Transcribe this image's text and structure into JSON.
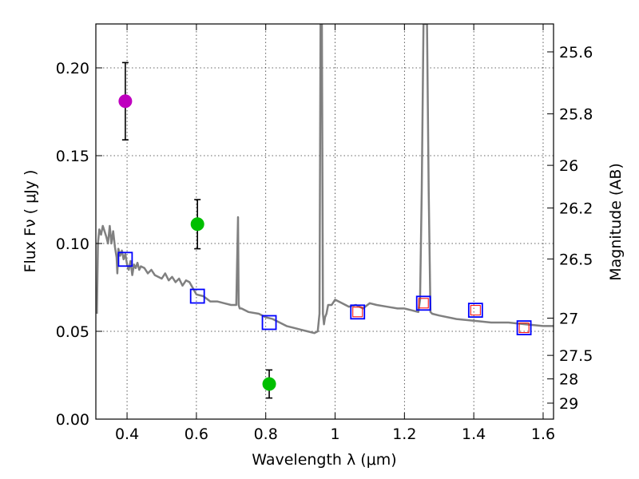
{
  "chart_data": {
    "type": "scatter",
    "xlabel": "Wavelength  λ (μm)",
    "ylabel": "Flux  Fν  ( μJy )",
    "ylabel_right": "Magnitude (AB)",
    "xlim": [
      0.31,
      1.63
    ],
    "ylim": [
      0.0,
      0.225
    ],
    "grid": true,
    "x_ticks": [
      0.4,
      0.6,
      0.8,
      1.0,
      1.2,
      1.4,
      1.6
    ],
    "x_tick_labels": [
      "0.4",
      "0.6",
      "0.8",
      "1",
      "1.2",
      "1.4",
      "1.6"
    ],
    "y_ticks": [
      0.0,
      0.05,
      0.1,
      0.15,
      0.2
    ],
    "y_tick_labels": [
      "0.00",
      "0.05",
      "0.10",
      "0.15",
      "0.20"
    ],
    "right_ticks": [
      {
        "label": "25.6",
        "flux": 0.2091
      },
      {
        "label": "25.8",
        "flux": 0.1738
      },
      {
        "label": "26",
        "flux": 0.1445
      },
      {
        "label": "26.2",
        "flux": 0.1202
      },
      {
        "label": "26.5",
        "flux": 0.0912
      },
      {
        "label": "27",
        "flux": 0.0575
      },
      {
        "label": "27.5",
        "flux": 0.0363
      },
      {
        "label": "28",
        "flux": 0.0229
      },
      {
        "label": "29",
        "flux": 0.0091
      }
    ],
    "series": [
      {
        "name": "model_sed",
        "kind": "line",
        "color": "#808080",
        "x": [
          0.313,
          0.316,
          0.32,
          0.325,
          0.33,
          0.335,
          0.34,
          0.345,
          0.35,
          0.355,
          0.36,
          0.365,
          0.37,
          0.372,
          0.375,
          0.38,
          0.385,
          0.39,
          0.395,
          0.4,
          0.405,
          0.41,
          0.415,
          0.42,
          0.425,
          0.43,
          0.435,
          0.44,
          0.45,
          0.46,
          0.47,
          0.48,
          0.49,
          0.5,
          0.51,
          0.52,
          0.53,
          0.54,
          0.55,
          0.56,
          0.57,
          0.58,
          0.6,
          0.62,
          0.64,
          0.66,
          0.68,
          0.7,
          0.715,
          0.72,
          0.722,
          0.725,
          0.73,
          0.75,
          0.78,
          0.8,
          0.82,
          0.84,
          0.86,
          0.88,
          0.9,
          0.92,
          0.94,
          0.95,
          0.955,
          0.958,
          0.96,
          0.962,
          0.965,
          0.968,
          0.971,
          0.975,
          0.98,
          0.99,
          1.0,
          1.02,
          1.04,
          1.06,
          1.08,
          1.1,
          1.12,
          1.15,
          1.18,
          1.2,
          1.22,
          1.24,
          1.245,
          1.25,
          1.255,
          1.26,
          1.265,
          1.27,
          1.275,
          1.28,
          1.3,
          1.35,
          1.4,
          1.45,
          1.5,
          1.55,
          1.6,
          1.63
        ],
        "y": [
          0.06,
          0.1,
          0.108,
          0.105,
          0.11,
          0.107,
          0.104,
          0.1,
          0.11,
          0.1,
          0.107,
          0.098,
          0.092,
          0.083,
          0.097,
          0.093,
          0.096,
          0.091,
          0.094,
          0.088,
          0.085,
          0.09,
          0.082,
          0.088,
          0.086,
          0.089,
          0.085,
          0.087,
          0.086,
          0.083,
          0.085,
          0.082,
          0.081,
          0.08,
          0.083,
          0.079,
          0.081,
          0.078,
          0.08,
          0.076,
          0.079,
          0.078,
          0.071,
          0.07,
          0.067,
          0.067,
          0.066,
          0.065,
          0.065,
          0.115,
          0.065,
          0.063,
          0.063,
          0.061,
          0.06,
          0.058,
          0.057,
          0.055,
          0.053,
          0.052,
          0.051,
          0.05,
          0.049,
          0.05,
          0.06,
          0.225,
          0.225,
          0.225,
          0.06,
          0.054,
          0.058,
          0.06,
          0.065,
          0.065,
          0.068,
          0.066,
          0.064,
          0.065,
          0.063,
          0.066,
          0.065,
          0.064,
          0.063,
          0.063,
          0.062,
          0.061,
          0.068,
          0.13,
          0.225,
          0.225,
          0.225,
          0.13,
          0.061,
          0.06,
          0.059,
          0.057,
          0.056,
          0.055,
          0.055,
          0.054,
          0.053,
          0.053
        ]
      },
      {
        "name": "observed_photometry",
        "kind": "points_with_errorbars",
        "points": [
          {
            "x": 0.395,
            "y": 0.181,
            "yerr": 0.022,
            "color": "#bf00bf"
          },
          {
            "x": 0.603,
            "y": 0.111,
            "yerr": 0.014,
            "color": "#00bf00"
          },
          {
            "x": 0.81,
            "y": 0.02,
            "yerr": 0.008,
            "color": "#00bf00"
          }
        ]
      },
      {
        "name": "model_band_flux",
        "kind": "open_squares",
        "color": "#0000ff",
        "x": [
          0.395,
          0.603,
          0.81,
          1.065,
          1.255,
          1.405,
          1.545
        ],
        "y": [
          0.091,
          0.07,
          0.055,
          0.061,
          0.066,
          0.062,
          0.052
        ]
      },
      {
        "name": "observed_ir_flux",
        "kind": "small_open_squares",
        "color": "#ff0000",
        "x": [
          1.065,
          1.255,
          1.405,
          1.545
        ],
        "y": [
          0.061,
          0.066,
          0.062,
          0.052
        ]
      }
    ]
  }
}
